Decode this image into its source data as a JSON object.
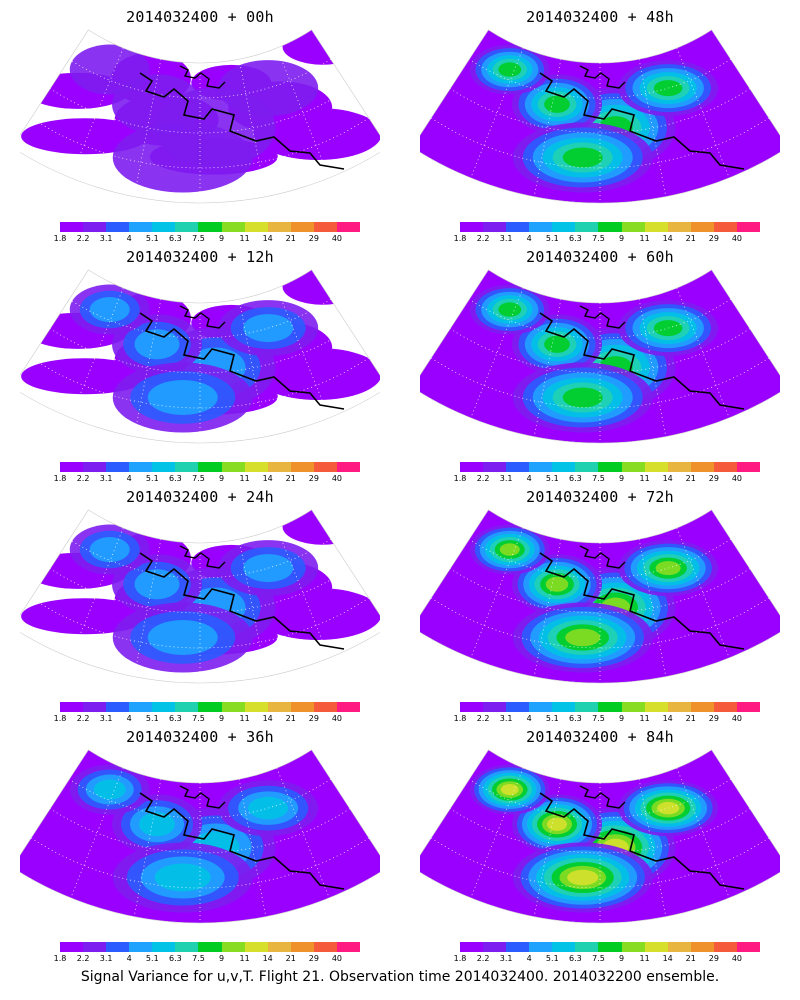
{
  "panels": [
    {
      "title": "2014032400  + 00h",
      "level": 0.1
    },
    {
      "title": "2014032400  + 48h",
      "level": 0.55
    },
    {
      "title": "2014032400  + 12h",
      "level": 0.25
    },
    {
      "title": "2014032400  + 60h",
      "level": 0.62
    },
    {
      "title": "2014032400  + 24h",
      "level": 0.32
    },
    {
      "title": "2014032400  + 72h",
      "level": 0.7
    },
    {
      "title": "2014032400  + 36h",
      "level": 0.42
    },
    {
      "title": "2014032400  + 84h",
      "level": 0.78
    }
  ],
  "colorbar": {
    "labels": [
      "1.8",
      "2.2",
      "3.1",
      "4",
      "5.1",
      "6.3",
      "7.5",
      "9",
      "11",
      "14",
      "21",
      "29",
      "40"
    ],
    "colors": [
      "#9a00ff",
      "#7d1df0",
      "#2a5cff",
      "#1fa3ff",
      "#00c3e6",
      "#20d1b0",
      "#00cc22",
      "#88dd22",
      "#d6e02c",
      "#e8b640",
      "#f0922c",
      "#f55a3a",
      "#ff1a82"
    ]
  },
  "footer": "Signal Variance for u,v,T. Flight 21. Observation time 2014032400. 2014032200 ensemble."
}
